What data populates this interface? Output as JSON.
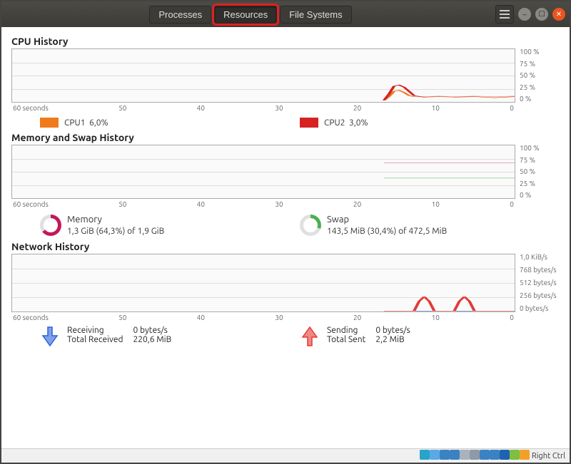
{
  "tabs": {
    "processes": "Processes",
    "resources": "Resources",
    "file_systems": "File Systems",
    "active": "resources"
  },
  "highlight_color": "#e02020",
  "xaxis": {
    "labels": [
      "60 seconds",
      "50",
      "40",
      "30",
      "20",
      "10",
      "0"
    ]
  },
  "cpu": {
    "title": "CPU History",
    "yaxis": [
      "100 %",
      "75 %",
      "50 %",
      "25 %",
      "0 %"
    ],
    "grid_color": "#dddddd",
    "series": [
      {
        "name": "CPU1",
        "label": "CPU1",
        "value": "6,0%",
        "color": "#ef7a1a",
        "points": [
          [
            74,
            97
          ],
          [
            75,
            90
          ],
          [
            76,
            80
          ],
          [
            77,
            78
          ],
          [
            78,
            82
          ],
          [
            79,
            88
          ],
          [
            80,
            90
          ],
          [
            82,
            90
          ],
          [
            85,
            89
          ],
          [
            88,
            90
          ],
          [
            92,
            89
          ],
          [
            96,
            90
          ],
          [
            100,
            89
          ]
        ]
      },
      {
        "name": "CPU2",
        "label": "CPU2",
        "value": "3,0%",
        "color": "#d62222",
        "points": [
          [
            74,
            97
          ],
          [
            75,
            85
          ],
          [
            76,
            70
          ],
          [
            77,
            68
          ],
          [
            78,
            72
          ],
          [
            79,
            80
          ],
          [
            80,
            88
          ],
          [
            82,
            91
          ],
          [
            85,
            90
          ],
          [
            88,
            91
          ],
          [
            92,
            90
          ],
          [
            96,
            92
          ],
          [
            100,
            90
          ]
        ]
      }
    ]
  },
  "mem": {
    "title": "Memory and Swap History",
    "yaxis": [
      "100 %",
      "75 %",
      "50 %",
      "25 %",
      "0 %"
    ],
    "grid_color": "#dddddd",
    "memory": {
      "label": "Memory",
      "text": "1,3 GiB (64,3%) of 1,9 GiB",
      "percent": 64.3,
      "color": "#c2185b",
      "points": [
        [
          74,
          33
        ],
        [
          100,
          33
        ]
      ]
    },
    "swap": {
      "label": "Swap",
      "text": "143,5 MiB (30,4%) of 472,5 MiB",
      "percent": 30.4,
      "color": "#4caf50",
      "points": [
        [
          74,
          62
        ],
        [
          100,
          62
        ]
      ]
    }
  },
  "net": {
    "title": "Network History",
    "yaxis": [
      "1,0 KiB/s",
      "768 bytes/s",
      "512 bytes/s",
      "256 bytes/s",
      "0 bytes/s"
    ],
    "grid_color": "#dddddd",
    "recv": {
      "label_rate": "Receiving",
      "value_rate": "0 bytes/s",
      "label_total": "Total Received",
      "value_total": "220,6 MiB",
      "color": "#2962d9",
      "points": [
        [
          74,
          99
        ],
        [
          100,
          99
        ]
      ]
    },
    "send": {
      "label_rate": "Sending",
      "value_rate": "0 bytes/s",
      "label_total": "Total Sent",
      "value_total": "2,2 MiB",
      "color": "#e53935",
      "points": [
        [
          74,
          99
        ],
        [
          79,
          99
        ],
        [
          80,
          99
        ],
        [
          81,
          82
        ],
        [
          82,
          74
        ],
        [
          83,
          82
        ],
        [
          84,
          99
        ],
        [
          87,
          99
        ],
        [
          88,
          99
        ],
        [
          89,
          82
        ],
        [
          90,
          74
        ],
        [
          91,
          82
        ],
        [
          92,
          99
        ],
        [
          100,
          99
        ]
      ]
    }
  },
  "vm_bar": {
    "label": "Right Ctrl",
    "icons": [
      {
        "name": "disk",
        "bg": "#29a3c9"
      },
      {
        "name": "disc",
        "bg": "#5aa9e6"
      },
      {
        "name": "usb",
        "bg": "#3b82c4"
      },
      {
        "name": "shared",
        "bg": "#3b82c4"
      },
      {
        "name": "display",
        "bg": "#aab2bd"
      },
      {
        "name": "audio",
        "bg": "#8e9aa6"
      },
      {
        "name": "net1",
        "bg": "#3b82c4"
      },
      {
        "name": "net2",
        "bg": "#3b82c4"
      },
      {
        "name": "vbox",
        "bg": "#1e63b0"
      },
      {
        "name": "rec",
        "bg": "#7fbf3f"
      },
      {
        "name": "capture",
        "bg": "#f2a127"
      }
    ]
  }
}
